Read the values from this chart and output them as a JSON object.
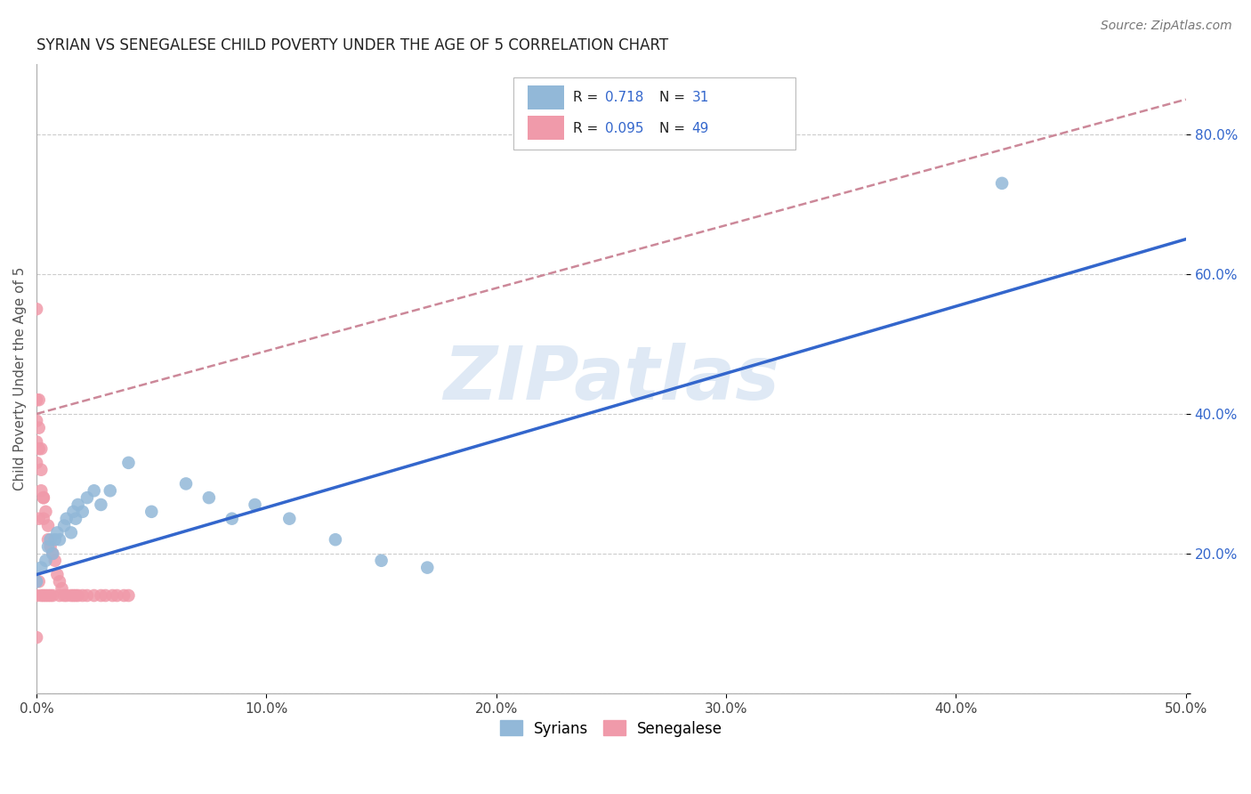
{
  "title": "SYRIAN VS SENEGALESE CHILD POVERTY UNDER THE AGE OF 5 CORRELATION CHART",
  "source": "Source: ZipAtlas.com",
  "ylabel": "Child Poverty Under the Age of 5",
  "xlim": [
    0.0,
    0.5
  ],
  "ylim": [
    0.0,
    0.9
  ],
  "watermark": "ZIPatlas",
  "legend_labels": [
    "Syrians",
    "Senegalese"
  ],
  "syrians_color": "#92b8d8",
  "senegalese_color": "#f09aaa",
  "syrian_line_color": "#3366cc",
  "senegalese_line_color": "#cc8899",
  "background_color": "#ffffff",
  "grid_color": "#cccccc",
  "R_syrian": 0.718,
  "N_syrian": 31,
  "R_senegalese": 0.095,
  "N_senegalese": 49,
  "syrians_x": [
    0.0,
    0.002,
    0.004,
    0.005,
    0.006,
    0.007,
    0.008,
    0.009,
    0.01,
    0.012,
    0.013,
    0.015,
    0.016,
    0.017,
    0.018,
    0.02,
    0.022,
    0.025,
    0.028,
    0.032,
    0.04,
    0.05,
    0.065,
    0.075,
    0.085,
    0.095,
    0.11,
    0.13,
    0.15,
    0.17,
    0.42
  ],
  "syrians_y": [
    0.16,
    0.18,
    0.19,
    0.21,
    0.22,
    0.2,
    0.22,
    0.23,
    0.22,
    0.24,
    0.25,
    0.23,
    0.26,
    0.25,
    0.27,
    0.26,
    0.28,
    0.29,
    0.27,
    0.29,
    0.33,
    0.26,
    0.3,
    0.28,
    0.25,
    0.27,
    0.25,
    0.22,
    0.19,
    0.18,
    0.73
  ],
  "senegalese_x": [
    0.0,
    0.0,
    0.0,
    0.0,
    0.0,
    0.001,
    0.001,
    0.001,
    0.001,
    0.002,
    0.002,
    0.002,
    0.003,
    0.003,
    0.003,
    0.004,
    0.004,
    0.005,
    0.005,
    0.005,
    0.006,
    0.006,
    0.007,
    0.007,
    0.008,
    0.009,
    0.01,
    0.01,
    0.011,
    0.012,
    0.013,
    0.015,
    0.016,
    0.017,
    0.018,
    0.02,
    0.022,
    0.025,
    0.028,
    0.03,
    0.033,
    0.035,
    0.038,
    0.04,
    0.0,
    0.001,
    0.002,
    0.003,
    0.0
  ],
  "senegalese_y": [
    0.42,
    0.39,
    0.36,
    0.33,
    0.14,
    0.38,
    0.35,
    0.25,
    0.16,
    0.32,
    0.29,
    0.14,
    0.28,
    0.25,
    0.14,
    0.26,
    0.14,
    0.24,
    0.22,
    0.14,
    0.21,
    0.14,
    0.2,
    0.14,
    0.19,
    0.17,
    0.16,
    0.14,
    0.15,
    0.14,
    0.14,
    0.14,
    0.14,
    0.14,
    0.14,
    0.14,
    0.14,
    0.14,
    0.14,
    0.14,
    0.14,
    0.14,
    0.14,
    0.14,
    0.55,
    0.42,
    0.35,
    0.28,
    0.08
  ],
  "syr_line_x": [
    0.0,
    0.5
  ],
  "syr_line_y": [
    0.17,
    0.65
  ],
  "sen_line_x": [
    0.0,
    0.5
  ],
  "sen_line_y": [
    0.4,
    0.85
  ]
}
